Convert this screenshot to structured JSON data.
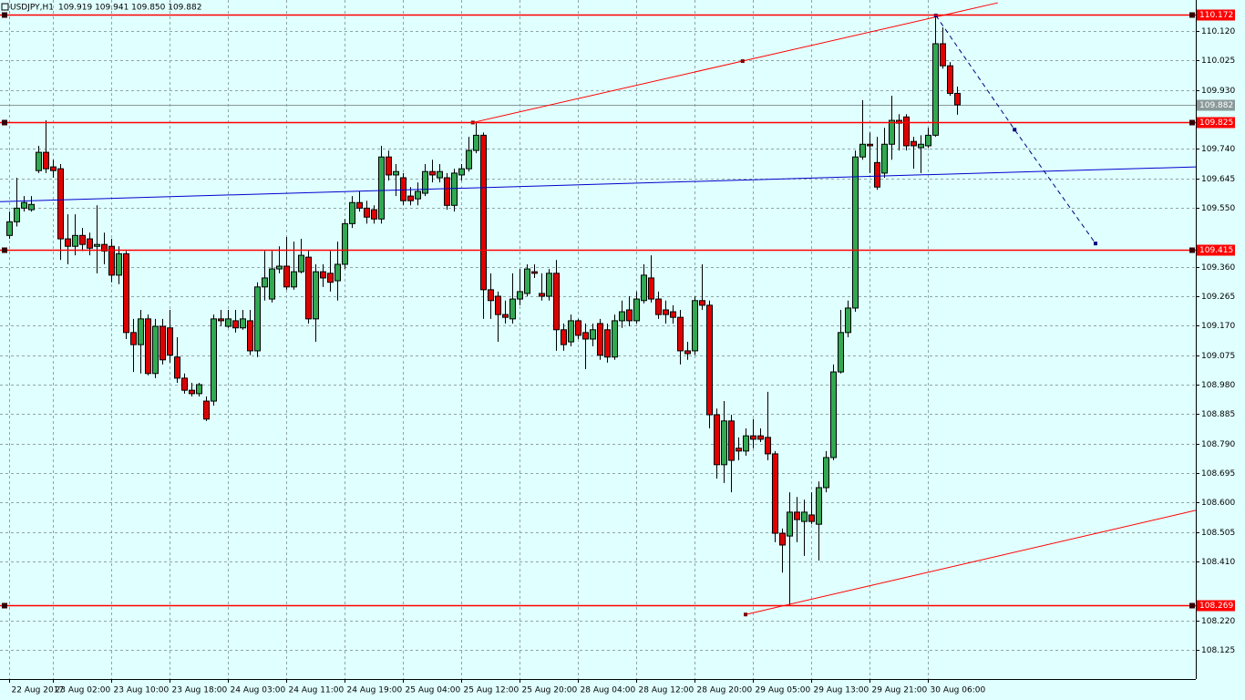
{
  "chart_data": {
    "type": "candlestick",
    "title": "USDJPY,H1",
    "quote": "109.919 109.941 109.850 109.882",
    "categories": [
      "22 Aug 2017",
      null,
      null,
      null,
      null,
      null,
      "23 Aug 02:00",
      null,
      null,
      null,
      null,
      null,
      null,
      null,
      "23 Aug 10:00",
      null,
      null,
      null,
      null,
      null,
      null,
      null,
      "23 Aug 18:00",
      null,
      null,
      null,
      null,
      null,
      null,
      null,
      "24 Aug 03:00",
      null,
      null,
      null,
      null,
      null,
      null,
      null,
      "24 Aug 11:00",
      null,
      null,
      null,
      null,
      null,
      null,
      null,
      "24 Aug 19:00",
      null,
      null,
      null,
      null,
      null,
      null,
      null,
      "25 Aug 04:00",
      null,
      null,
      null,
      null,
      null,
      null,
      null,
      "25 Aug 12:00",
      null,
      null,
      null,
      null,
      null,
      null,
      null,
      "25 Aug 20:00",
      null,
      null,
      null,
      null,
      null,
      null,
      null,
      "28 Aug 04:00",
      null,
      null,
      null,
      null,
      null,
      null,
      null,
      "28 Aug 12:00",
      null,
      null,
      null,
      null,
      null,
      null,
      null,
      "28 Aug 20:00",
      null,
      null,
      null,
      null,
      null,
      null,
      null,
      "29 Aug 05:00",
      null,
      null,
      null,
      null,
      null,
      null,
      null,
      "29 Aug 13:00",
      null,
      null,
      null,
      null,
      null,
      null,
      null,
      "29 Aug 21:00",
      null,
      null,
      null,
      null,
      null,
      null,
      null,
      "30 Aug 06:00",
      null,
      null,
      null,
      null
    ],
    "ohlc": [
      [
        109.461,
        109.538,
        109.45,
        109.505
      ],
      [
        109.505,
        109.647,
        109.49,
        109.549
      ],
      [
        109.549,
        109.588,
        109.538,
        109.567
      ],
      [
        109.544,
        109.588,
        109.538,
        109.561
      ],
      [
        109.67,
        109.75,
        109.662,
        109.729
      ],
      [
        109.729,
        109.832,
        109.662,
        109.676
      ],
      [
        109.682,
        109.705,
        109.647,
        109.67
      ],
      [
        109.676,
        109.691,
        109.382,
        109.45
      ],
      [
        109.45,
        109.529,
        109.368,
        109.426
      ],
      [
        109.426,
        109.529,
        109.397,
        109.461
      ],
      [
        109.461,
        109.485,
        109.411,
        109.432
      ],
      [
        109.45,
        109.47,
        109.397,
        109.42
      ],
      [
        109.426,
        109.558,
        109.339,
        109.432
      ],
      [
        109.432,
        109.47,
        109.368,
        109.411
      ],
      [
        109.426,
        109.45,
        109.31,
        109.333
      ],
      [
        109.333,
        109.426,
        109.304,
        109.402
      ],
      [
        109.402,
        109.411,
        109.127,
        109.148
      ],
      [
        109.148,
        109.192,
        109.021,
        109.109
      ],
      [
        109.109,
        109.221,
        109.016,
        109.192
      ],
      [
        109.192,
        109.206,
        109.01,
        109.016
      ],
      [
        109.016,
        109.192,
        109.001,
        109.168
      ],
      [
        109.168,
        109.192,
        109.045,
        109.06
      ],
      [
        109.163,
        109.221,
        109.051,
        109.075
      ],
      [
        109.069,
        109.133,
        108.986,
        109.001
      ],
      [
        109.001,
        109.016,
        108.951,
        108.962
      ],
      [
        108.962,
        108.986,
        108.942,
        108.951
      ],
      [
        108.951,
        108.986,
        108.942,
        108.98
      ],
      [
        108.927,
        108.942,
        108.863,
        108.869
      ],
      [
        108.927,
        109.206,
        108.912,
        109.192
      ],
      [
        109.192,
        109.221,
        109.168,
        109.186
      ],
      [
        109.168,
        109.221,
        109.163,
        109.192
      ],
      [
        109.186,
        109.221,
        109.148,
        109.163
      ],
      [
        109.163,
        109.221,
        109.157,
        109.192
      ],
      [
        109.186,
        109.221,
        109.075,
        109.089
      ],
      [
        109.089,
        109.31,
        109.069,
        109.295
      ],
      [
        109.295,
        109.411,
        109.251,
        109.324
      ],
      [
        109.256,
        109.411,
        109.245,
        109.353
      ],
      [
        109.353,
        109.426,
        109.339,
        109.362
      ],
      [
        109.362,
        109.456,
        109.286,
        109.295
      ],
      [
        109.295,
        109.441,
        109.286,
        109.344
      ],
      [
        109.344,
        109.45,
        109.339,
        109.397
      ],
      [
        109.391,
        109.411,
        109.177,
        109.192
      ],
      [
        109.192,
        109.368,
        109.118,
        109.344
      ],
      [
        109.344,
        109.368,
        109.295,
        109.324
      ],
      [
        109.339,
        109.411,
        109.28,
        109.31
      ],
      [
        109.315,
        109.441,
        109.251,
        109.368
      ],
      [
        109.368,
        109.514,
        109.353,
        109.499
      ],
      [
        109.499,
        109.588,
        109.485,
        109.567
      ],
      [
        109.567,
        109.603,
        109.538,
        109.549
      ],
      [
        109.549,
        109.573,
        109.499,
        109.52
      ],
      [
        109.544,
        109.558,
        109.499,
        109.514
      ],
      [
        109.514,
        109.75,
        109.499,
        109.714
      ],
      [
        109.714,
        109.735,
        109.638,
        109.656
      ],
      [
        109.656,
        109.691,
        109.588,
        109.667
      ],
      [
        109.647,
        109.662,
        109.558,
        109.573
      ],
      [
        109.588,
        109.617,
        109.558,
        109.573
      ],
      [
        109.579,
        109.632,
        109.558,
        109.603
      ],
      [
        109.597,
        109.691,
        109.588,
        109.667
      ],
      [
        109.667,
        109.705,
        109.632,
        109.656
      ],
      [
        109.647,
        109.691,
        109.632,
        109.667
      ],
      [
        109.647,
        109.662,
        109.544,
        109.558
      ],
      [
        109.558,
        109.676,
        109.538,
        109.662
      ],
      [
        109.656,
        109.691,
        109.638,
        109.676
      ],
      [
        109.676,
        109.779,
        109.667,
        109.735
      ],
      [
        109.735,
        109.823,
        109.726,
        109.784
      ],
      [
        109.784,
        109.793,
        109.192,
        109.286
      ],
      [
        109.286,
        109.339,
        109.192,
        109.251
      ],
      [
        109.265,
        109.28,
        109.118,
        109.206
      ],
      [
        109.206,
        109.251,
        109.177,
        109.197
      ],
      [
        109.192,
        109.339,
        109.177,
        109.256
      ],
      [
        109.256,
        109.353,
        109.236,
        109.28
      ],
      [
        109.274,
        109.368,
        109.265,
        109.353
      ],
      [
        109.344,
        109.368,
        109.324,
        109.339
      ],
      [
        109.274,
        109.339,
        109.251,
        109.265
      ],
      [
        109.265,
        109.353,
        109.251,
        109.339
      ],
      [
        109.339,
        109.382,
        109.089,
        109.157
      ],
      [
        109.157,
        109.177,
        109.089,
        109.109
      ],
      [
        109.118,
        109.206,
        109.104,
        109.186
      ],
      [
        109.186,
        109.192,
        109.127,
        109.139
      ],
      [
        109.148,
        109.177,
        109.03,
        109.127
      ],
      [
        109.127,
        109.177,
        109.104,
        109.157
      ],
      [
        109.177,
        109.192,
        109.06,
        109.075
      ],
      [
        109.157,
        109.177,
        109.051,
        109.069
      ],
      [
        109.069,
        109.206,
        109.06,
        109.186
      ],
      [
        109.186,
        109.251,
        109.163,
        109.215
      ],
      [
        109.221,
        109.265,
        109.168,
        109.186
      ],
      [
        109.186,
        109.28,
        109.177,
        109.256
      ],
      [
        109.251,
        109.368,
        109.242,
        109.333
      ],
      [
        109.324,
        109.397,
        109.245,
        109.256
      ],
      [
        109.256,
        109.28,
        109.192,
        109.206
      ],
      [
        109.221,
        109.251,
        109.177,
        109.206
      ],
      [
        109.215,
        109.236,
        109.177,
        109.197
      ],
      [
        109.197,
        109.221,
        109.045,
        109.089
      ],
      [
        109.089,
        109.118,
        109.06,
        109.08
      ],
      [
        109.089,
        109.265,
        109.075,
        109.251
      ],
      [
        109.251,
        109.368,
        109.221,
        109.236
      ],
      [
        109.236,
        109.251,
        108.839,
        108.883
      ],
      [
        108.883,
        108.903,
        108.677,
        108.722
      ],
      [
        108.722,
        108.927,
        108.663,
        108.863
      ],
      [
        108.863,
        108.883,
        108.633,
        108.736
      ],
      [
        108.775,
        108.81,
        108.736,
        108.766
      ],
      [
        108.766,
        108.839,
        108.751,
        108.815
      ],
      [
        108.815,
        108.869,
        108.775,
        108.804
      ],
      [
        108.815,
        108.839,
        108.795,
        108.804
      ],
      [
        108.81,
        108.957,
        108.736,
        108.757
      ],
      [
        108.757,
        108.766,
        108.472,
        108.501
      ],
      [
        108.501,
        108.516,
        108.374,
        108.463
      ],
      [
        108.492,
        108.633,
        108.269,
        108.569
      ],
      [
        108.569,
        108.618,
        108.472,
        108.545
      ],
      [
        108.539,
        108.609,
        108.428,
        108.569
      ],
      [
        108.56,
        108.633,
        108.53,
        108.539
      ],
      [
        108.53,
        108.668,
        108.413,
        108.648
      ],
      [
        108.648,
        108.766,
        108.633,
        108.745
      ],
      [
        108.745,
        109.045,
        108.736,
        109.021
      ],
      [
        109.021,
        109.221,
        109.016,
        109.148
      ],
      [
        109.148,
        109.251,
        109.133,
        109.227
      ],
      [
        109.227,
        109.735,
        109.215,
        109.714
      ],
      [
        109.714,
        109.897,
        109.705,
        109.755
      ],
      [
        109.755,
        109.793,
        109.662,
        109.75
      ],
      [
        109.696,
        109.779,
        109.608,
        109.617
      ],
      [
        109.662,
        109.808,
        109.647,
        109.755
      ],
      [
        109.755,
        109.911,
        109.705,
        109.832
      ],
      [
        109.832,
        109.852,
        109.735,
        109.823
      ],
      [
        109.843,
        109.852,
        109.735,
        109.75
      ],
      [
        109.764,
        109.779,
        109.676,
        109.75
      ],
      [
        109.744,
        109.784,
        109.662,
        109.755
      ],
      [
        109.75,
        109.808,
        109.744,
        109.784
      ],
      [
        109.784,
        110.172,
        109.779,
        110.079
      ],
      [
        110.079,
        110.132,
        109.999,
        110.008
      ],
      [
        110.008,
        110.02,
        109.911,
        109.919
      ],
      [
        109.919,
        109.941,
        109.85,
        109.882
      ]
    ],
    "up_color": "#32a852",
    "down_color": "#e00000",
    "xlim": [
      -1.25,
      162.75
    ],
    "ylim": [
      108.031,
      110.22
    ],
    "yticks": [
      {
        "value": 110.12,
        "label": "110.120"
      },
      110.025,
      {
        "value": 109.93,
        "label": "109.930"
      },
      {
        "value": 109.74,
        "label": "109.740"
      },
      109.645,
      {
        "value": 109.55,
        "label": "109.550"
      },
      {
        "value": 109.36,
        "label": "109.360"
      },
      109.265,
      {
        "value": 109.17,
        "label": "109.170"
      },
      109.075,
      {
        "value": 108.98,
        "label": "108.980"
      },
      108.885,
      {
        "value": 108.79,
        "label": "108.790"
      },
      108.695,
      {
        "value": 108.6,
        "label": "108.600"
      },
      108.505,
      {
        "value": 108.41,
        "label": "108.410"
      },
      {
        "value": 108.22,
        "label": "108.220"
      },
      108.125
    ],
    "grid": true,
    "hlines": [
      110.172,
      109.825,
      109.415,
      108.269
    ],
    "hline_color": "#ff0000",
    "current_price": 109.882,
    "current_price_color": "#8a9999",
    "trendlines": [
      {
        "color": "#ff0000",
        "x": [
          63.6,
          100.6,
          135.6
        ],
        "y": [
          109.825,
          110.023,
          110.211
        ]
      },
      {
        "color": "#ff0000",
        "x": [
          101,
          162.75
        ],
        "y": [
          108.239,
          108.575
        ]
      },
      {
        "color": "#0000cc",
        "x": [
          -1.25,
          162.75
        ],
        "y": [
          109.57,
          109.682
        ]
      },
      {
        "color": "#000080",
        "dash": true,
        "x": [
          127.1,
          137.9,
          149
        ],
        "y": [
          110.17,
          109.802,
          109.435
        ]
      }
    ]
  }
}
